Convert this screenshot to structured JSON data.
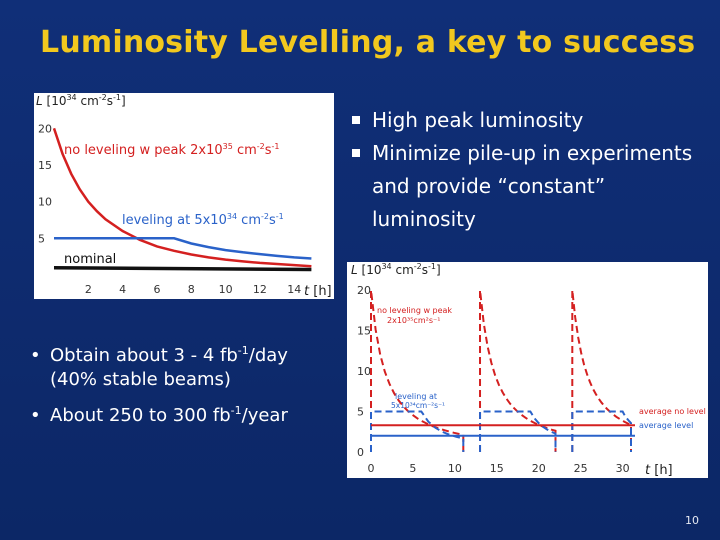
{
  "slide": {
    "title": "Luminosity Levelling, a key to success",
    "page_number": "10",
    "colors": {
      "background": "#0e2a6e",
      "title": "#f2c81e",
      "text": "#ffffff"
    }
  },
  "right_bullets": [
    "High peak luminosity",
    "Minimize pile-up in experiments and provide “constant” luminosity"
  ],
  "left_bullets": [
    {
      "pre": "Obtain about 3 - 4 fb",
      "sup": "-1",
      "post": "/day (40% stable beams)"
    },
    {
      "pre": "About 250 to 300 fb",
      "sup": "-1",
      "post": "/year"
    }
  ],
  "chart_data": [
    {
      "type": "line",
      "ylabel": {
        "var": "L",
        "pre": "[10",
        "exp": "34",
        "mid": " cm",
        "exp2": "-2",
        "mid2": "s",
        "exp3": "-1",
        "post": "]"
      },
      "xlabel": {
        "var": "t",
        "unit": "[h]"
      },
      "x_ticks": [
        "2",
        "4",
        "6",
        "8",
        "10",
        "12",
        "14"
      ],
      "y_ticks": [
        "5",
        "10",
        "15",
        "20"
      ],
      "xlim": [
        0,
        15.5
      ],
      "ylim": [
        0,
        21
      ],
      "series": [
        {
          "name": "no leveling",
          "label_pre": "no leveling w peak 2x10",
          "label_exp": "35",
          "label_mid": " cm",
          "label_exp2": "-2",
          "label_mid2": "s",
          "label_exp3": "-1",
          "color": "#d42020",
          "x": [
            0,
            0.5,
            1,
            1.5,
            2,
            2.5,
            3,
            4,
            5,
            6,
            7,
            8,
            9,
            10,
            11,
            12,
            13,
            14,
            15
          ],
          "y": [
            20,
            16.5,
            13.8,
            11.7,
            10,
            8.7,
            7.6,
            6.0,
            4.8,
            3.9,
            3.3,
            2.8,
            2.4,
            2.1,
            1.85,
            1.65,
            1.5,
            1.35,
            1.2
          ]
        },
        {
          "name": "leveling",
          "label_pre": "leveling at 5x10",
          "label_exp": "34",
          "label_mid": " cm",
          "label_exp2": "-2",
          "label_mid2": "s",
          "label_exp3": "-1",
          "color": "#2a62c9",
          "x": [
            0,
            7,
            8,
            9,
            10,
            11,
            12,
            13,
            14,
            15
          ],
          "y": [
            5,
            5,
            4.3,
            3.8,
            3.4,
            3.1,
            2.85,
            2.6,
            2.4,
            2.25
          ]
        },
        {
          "name": "nominal",
          "label_pre": "nominal",
          "color": "#111111",
          "x": [
            0,
            15
          ],
          "y": [
            1.0,
            0.75
          ]
        }
      ]
    },
    {
      "type": "line",
      "ylabel": {
        "var": "L",
        "pre": "[10",
        "exp": "34",
        "mid": " cm",
        "exp2": "-2",
        "mid2": "s",
        "exp3": "-1",
        "post": "]"
      },
      "xlabel": {
        "var": "t",
        "unit": "[h]"
      },
      "x_ticks": [
        "0",
        "5",
        "10",
        "15",
        "20",
        "25",
        "30"
      ],
      "y_ticks": [
        "0",
        "5",
        "10",
        "15",
        "20"
      ],
      "xlim": [
        0,
        31
      ],
      "ylim": [
        0,
        21
      ],
      "annotations": {
        "no_level_line1": "no leveling w peak",
        "no_level_line2": "2x10³⁵cm²s⁻¹",
        "level_line1": "leveling at",
        "level_line2": "5x10³⁴cm⁻²s⁻¹",
        "legend_red": "average no level",
        "legend_blue": "average level"
      },
      "fills": [
        {
          "t0": 0,
          "t1": 13,
          "duration": 11
        },
        {
          "t0": 13,
          "t1": 24,
          "duration": 9
        },
        {
          "t0": 24,
          "t1": 31,
          "duration": 7
        }
      ],
      "peak": 20,
      "level": 5,
      "level_hold_h": 6,
      "avg_no_level": 3.3,
      "avg_level": 2.0,
      "colors": {
        "red": "#d42020",
        "blue": "#2a62c9"
      }
    }
  ]
}
